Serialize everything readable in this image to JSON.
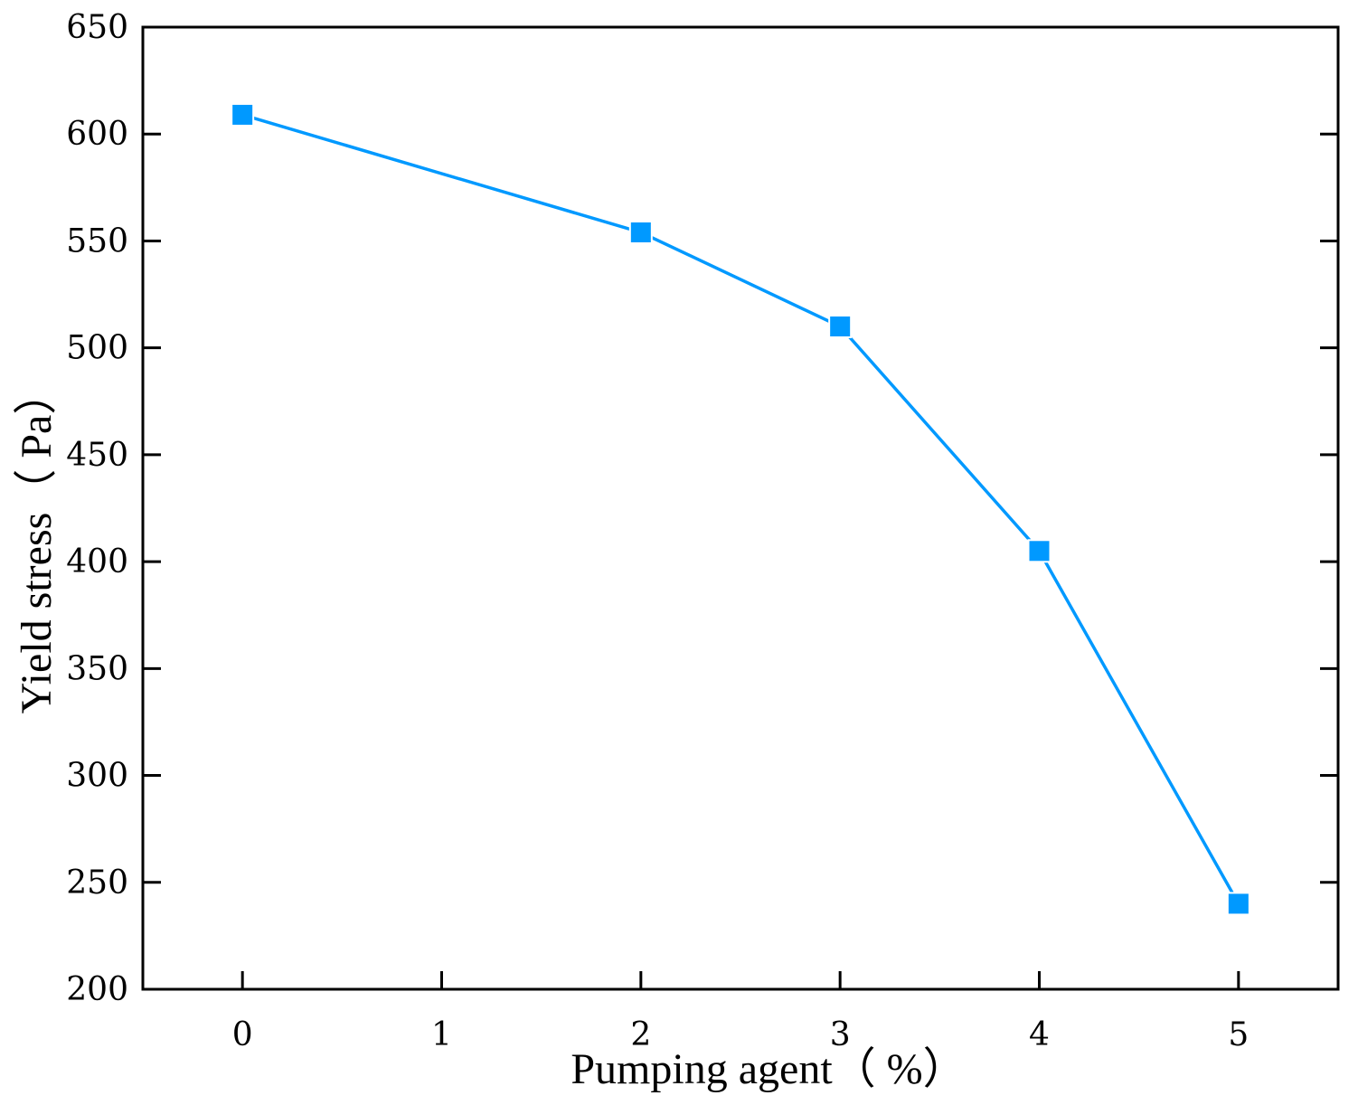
{
  "chart_data": {
    "type": "line",
    "title": "",
    "xlabel": "Pumping agent（ %）",
    "ylabel": "Yield stress（ Pa）",
    "xlim": [
      -0.5,
      5.5
    ],
    "ylim": [
      200,
      650
    ],
    "x_ticks": [
      0,
      1,
      2,
      3,
      4,
      5
    ],
    "y_ticks": [
      200,
      250,
      300,
      350,
      400,
      450,
      500,
      550,
      600,
      650
    ],
    "grid": false,
    "legend": "none",
    "series": [
      {
        "color": "#0099ff",
        "marker": "square",
        "x": [
          0,
          2,
          3,
          4,
          5
        ],
        "y": [
          609,
          554,
          510,
          405,
          240
        ]
      }
    ]
  }
}
